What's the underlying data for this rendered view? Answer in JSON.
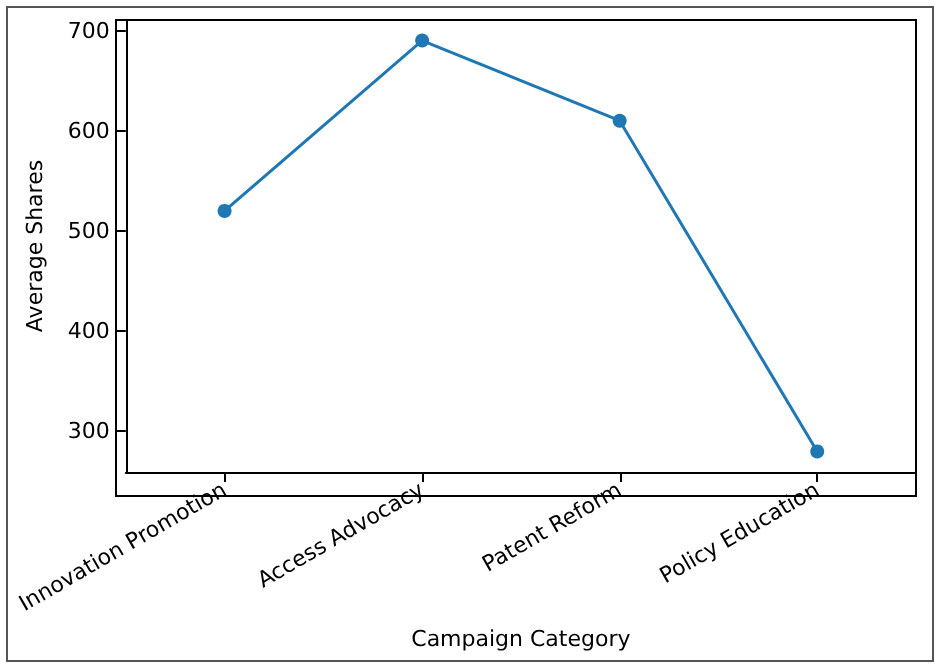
{
  "chart_data": {
    "type": "line",
    "xlabel": "Campaign Category",
    "ylabel": "Average Shares",
    "categories": [
      "Innovation Promotion",
      "Access Advocacy",
      "Patent Reform",
      "Policy Education"
    ],
    "values": [
      520,
      690,
      610,
      280
    ],
    "color": "#1f77b4",
    "marker": "circle",
    "ylim": [
      259.5,
      710.5
    ],
    "yticks": [
      300,
      400,
      500,
      600,
      700
    ],
    "grid": false
  }
}
